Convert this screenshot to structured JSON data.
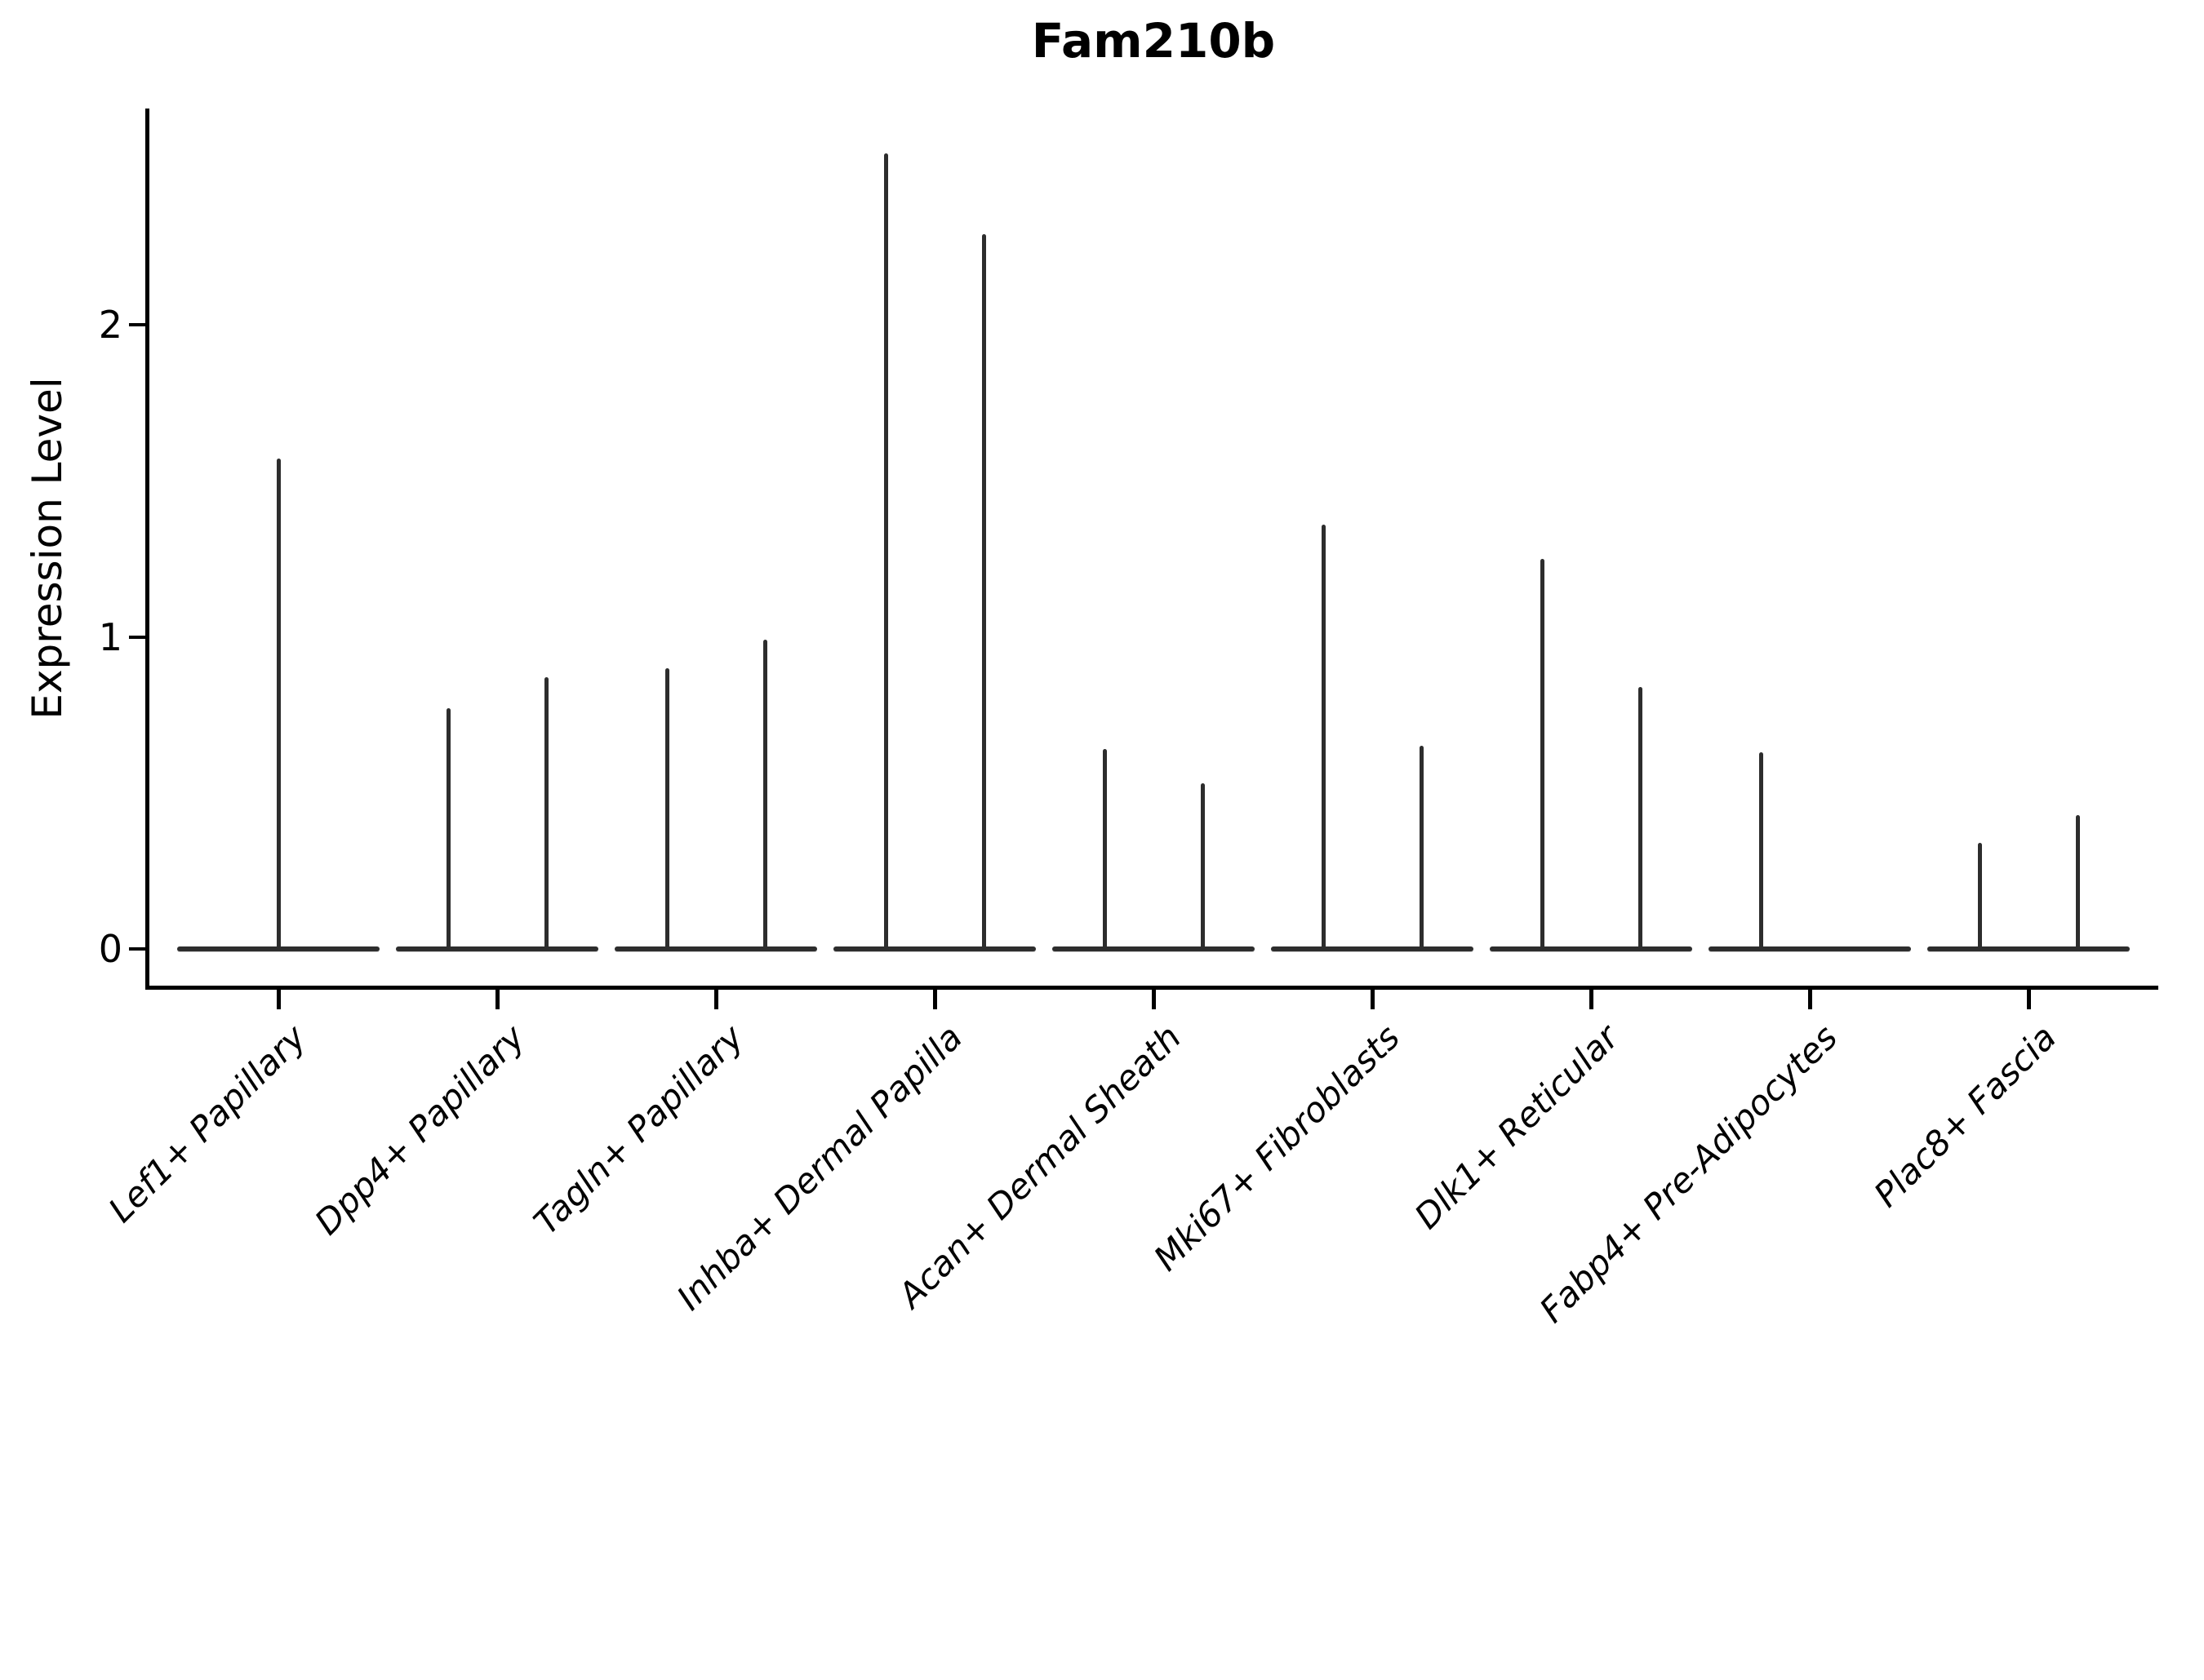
{
  "figure": {
    "title": "Fam210b",
    "y_axis": {
      "label": "Expression Level",
      "tick_labels": [
        "0",
        "1",
        "2"
      ]
    }
  },
  "chart_data": {
    "type": "violin",
    "title": "Fam210b",
    "xlabel": "",
    "ylabel": "Expression Level",
    "yticks": [
      0,
      1,
      2
    ],
    "ylim": [
      -0.12,
      2.69
    ],
    "grid": false,
    "legend": null,
    "style_note": "Expression is concentrated at 0, so each violin collapses to a flat horizontal line at y=0 with a thin vertical spike up to the group maximum; most categories contain two side-by-side group violins (left/right spikes).",
    "categories": [
      "Lef1+ Papillary",
      "Dpp4+ Papillary",
      "Tagln+ Papillary",
      "Inhba+ Dermal Papilla",
      "Acan+ Dermal Sheath",
      "Mki67+ Fibroblasts",
      "Dlk1+ Reticular",
      "Fabp4+ Pre-Adipocytes",
      "Plac8+ Fascia"
    ],
    "violins": [
      {
        "category": "Lef1+ Papillary",
        "spikes": [
          {
            "pos": "center",
            "max": 1.57
          }
        ]
      },
      {
        "category": "Dpp4+ Papillary",
        "spikes": [
          {
            "pos": "left",
            "max": 0.77
          },
          {
            "pos": "right",
            "max": 0.87
          }
        ]
      },
      {
        "category": "Tagln+ Papillary",
        "spikes": [
          {
            "pos": "left",
            "max": 0.9
          },
          {
            "pos": "right",
            "max": 0.99
          }
        ]
      },
      {
        "category": "Inhba+ Dermal Papilla",
        "spikes": [
          {
            "pos": "left",
            "max": 2.55
          },
          {
            "pos": "right",
            "max": 2.29
          }
        ]
      },
      {
        "category": "Acan+ Dermal Sheath",
        "spikes": [
          {
            "pos": "left",
            "max": 0.64
          },
          {
            "pos": "right",
            "max": 0.53
          }
        ]
      },
      {
        "category": "Mki67+ Fibroblasts",
        "spikes": [
          {
            "pos": "left",
            "max": 1.36
          },
          {
            "pos": "right",
            "max": 0.65
          }
        ]
      },
      {
        "category": "Dlk1+ Reticular",
        "spikes": [
          {
            "pos": "left",
            "max": 1.25
          },
          {
            "pos": "right",
            "max": 0.84
          }
        ]
      },
      {
        "category": "Fabp4+ Pre-Adipocytes",
        "spikes": [
          {
            "pos": "left",
            "max": 0.63
          }
        ]
      },
      {
        "category": "Plac8+ Fascia",
        "spikes": [
          {
            "pos": "left",
            "max": 0.34
          },
          {
            "pos": "right",
            "max": 0.43
          }
        ]
      }
    ],
    "colors": {
      "violin_line": "#2d2d2d",
      "spine": "#000000",
      "background": "#ffffff"
    }
  }
}
